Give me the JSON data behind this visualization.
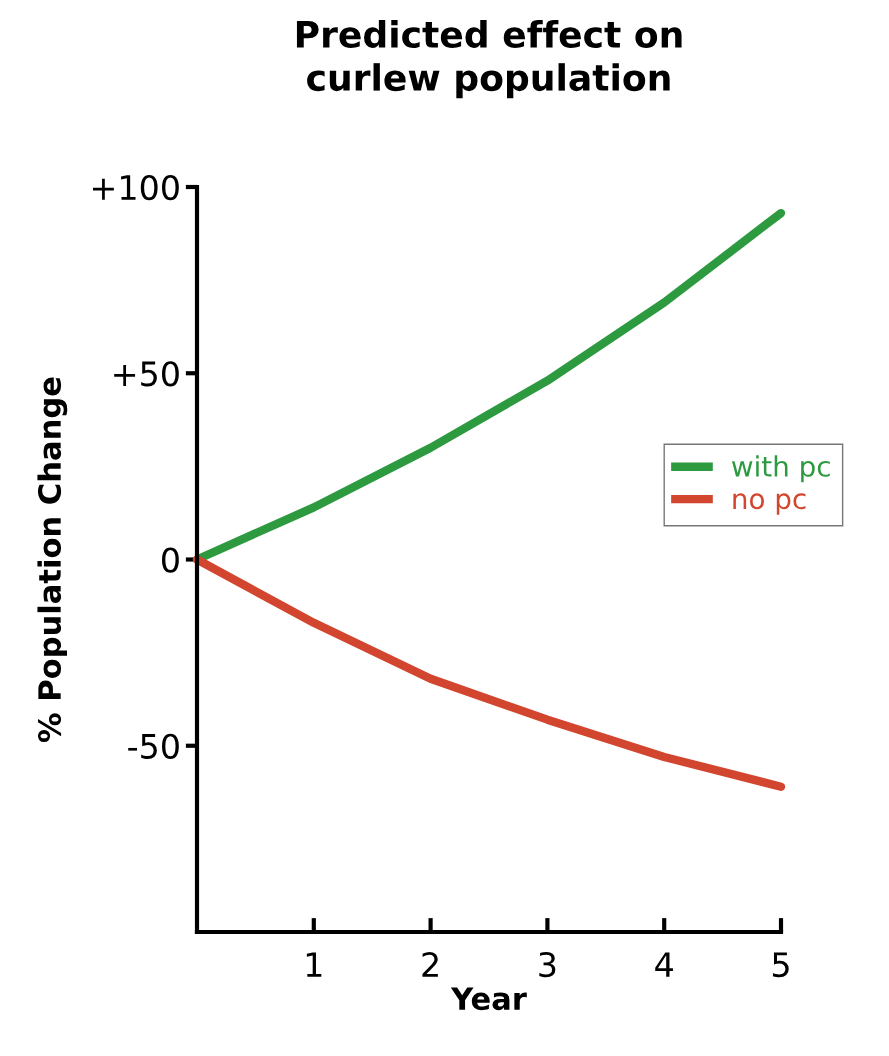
{
  "chart_data": {
    "type": "line",
    "title": "Predicted effect on\ncurlew population",
    "xlabel": "Year",
    "ylabel": "% Population Change",
    "x": [
      0,
      1,
      2,
      3,
      4,
      5
    ],
    "series": [
      {
        "name": "with pc",
        "color": "#2e9a40",
        "values": [
          0,
          14,
          30,
          48,
          69,
          93
        ]
      },
      {
        "name": "no pc",
        "color": "#d2452e",
        "values": [
          0,
          -17,
          -32,
          -43,
          -53,
          -61
        ]
      }
    ],
    "xlim": [
      0,
      5
    ],
    "xticks": [
      1,
      2,
      3,
      4,
      5
    ],
    "ylim": [
      -100,
      100
    ],
    "yticks": [
      {
        "value": 100,
        "label": "+100"
      },
      {
        "value": 50,
        "label": "+50"
      },
      0,
      -50
    ],
    "legend": "right",
    "grid": false,
    "marker": "none",
    "line_style": "solid"
  }
}
